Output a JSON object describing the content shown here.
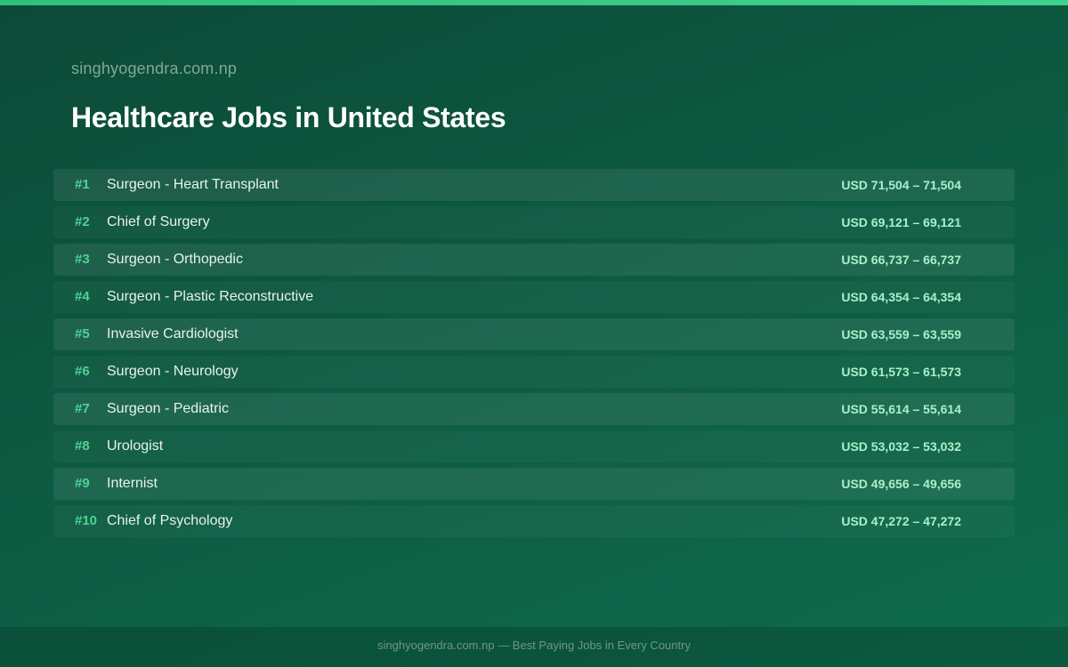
{
  "site_name": "singhyogendra.com.np",
  "page_title": "Healthcare Jobs in United States",
  "jobs": [
    {
      "rank": "#1",
      "title": "Surgeon - Heart Transplant",
      "salary": "USD 71,504 – 71,504"
    },
    {
      "rank": "#2",
      "title": "Chief of Surgery",
      "salary": "USD 69,121 – 69,121"
    },
    {
      "rank": "#3",
      "title": "Surgeon - Orthopedic",
      "salary": "USD 66,737 – 66,737"
    },
    {
      "rank": "#4",
      "title": "Surgeon - Plastic Reconstructive",
      "salary": "USD 64,354 – 64,354"
    },
    {
      "rank": "#5",
      "title": "Invasive Cardiologist",
      "salary": "USD 63,559 – 63,559"
    },
    {
      "rank": "#6",
      "title": "Surgeon - Neurology",
      "salary": "USD 61,573 – 61,573"
    },
    {
      "rank": "#7",
      "title": "Surgeon - Pediatric",
      "salary": "USD 55,614 – 55,614"
    },
    {
      "rank": "#8",
      "title": "Urologist",
      "salary": "USD 53,032 – 53,032"
    },
    {
      "rank": "#9",
      "title": "Internist",
      "salary": "USD 49,656 – 49,656"
    },
    {
      "rank": "#10",
      "title": "Chief of Psychology",
      "salary": "USD 47,272 – 47,272"
    }
  ],
  "footer": {
    "text": "singhyogendra.com.np — Best Paying Jobs in Every Country"
  },
  "colors": {
    "accent": "#4fd394",
    "salary": "#a9f0cb",
    "background": "#0d5a41"
  }
}
